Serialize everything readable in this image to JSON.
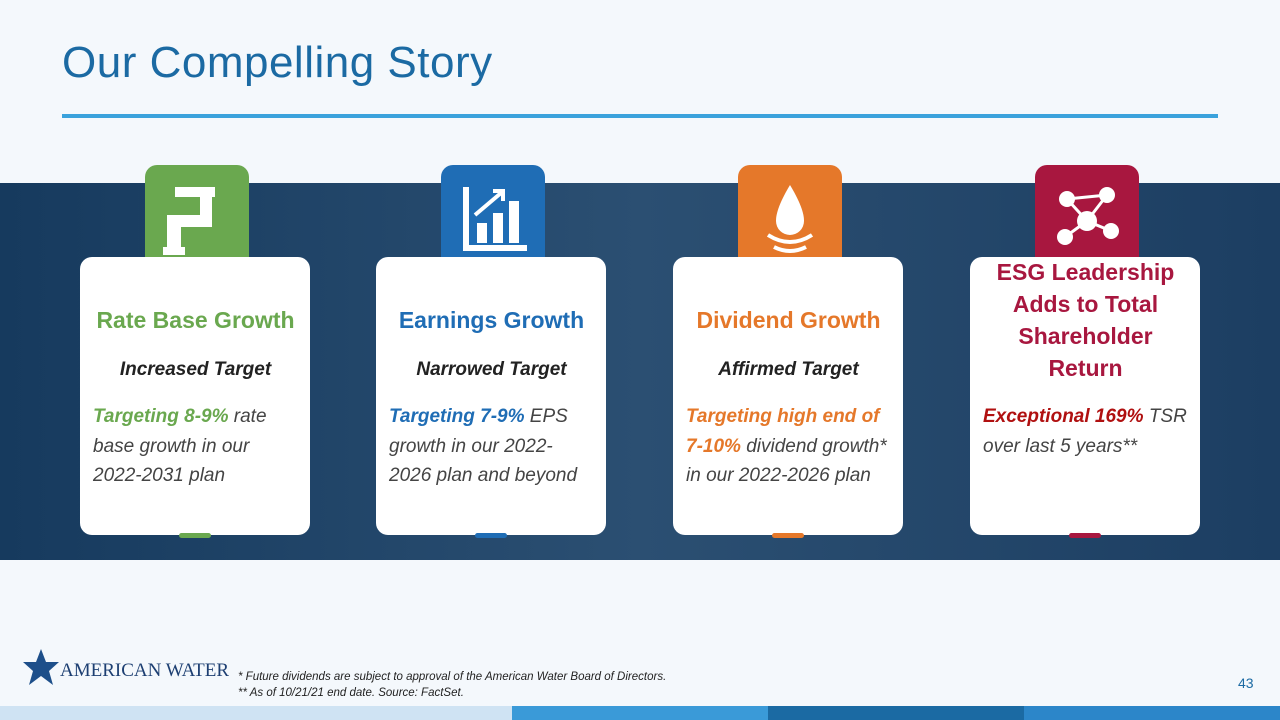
{
  "header": {
    "title": "Our Compelling Story"
  },
  "cards": [
    {
      "title": "Rate Base Growth",
      "subtitle": "Increased Target",
      "highlight": "Targeting 8-9%",
      "text": "rate base growth in our 2022-2031 plan",
      "color": "#6aa84f",
      "highlight_color": "#6aa84f"
    },
    {
      "title": "Earnings Growth",
      "subtitle": "Narrowed Target",
      "highlight": "Targeting 7-9%",
      "text": "EPS growth in our 2022-2026 plan and beyond",
      "color": "#1f6db5",
      "highlight_color": "#1f6db5"
    },
    {
      "title": "Dividend Growth",
      "subtitle": "Affirmed Target",
      "highlight": "Targeting high end of 7-10%",
      "text": "dividend growth* in our 2022-2026 plan",
      "color": "#e5782a",
      "highlight_color": "#e5782a"
    },
    {
      "title": "ESG Leadership Adds to Total Shareholder Return",
      "highlight": "Exceptional 169%",
      "text": "TSR over last 5 years**",
      "color": "#a8173f",
      "highlight_color": "#b01010"
    }
  ],
  "footer": {
    "logo": "American Water",
    "notes": [
      "* Future dividends are subject to approval of the American Water Board of Directors.",
      "** As of 10/21/21 end date. Source: FactSet."
    ],
    "page": "43"
  }
}
